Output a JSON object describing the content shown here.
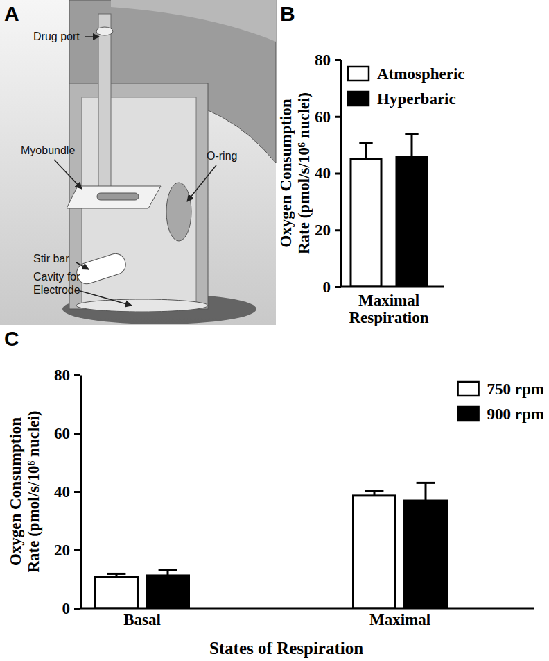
{
  "diagram": {
    "panel_label": "A",
    "labels": [
      {
        "text": [
          "Drug port"
        ]
      },
      {
        "text": [
          "Myobundle"
        ]
      },
      {
        "text": [
          "O-ring"
        ]
      },
      {
        "text": [
          "Stir bar"
        ]
      },
      {
        "text": [
          "Cavity for",
          "Electrode"
        ]
      }
    ]
  },
  "chart_data": [
    {
      "type": "bar",
      "panel_label": "B",
      "y_label": [
        "Oxygen Consumption",
        "Rate (pmol/s/10⁶ nuclei)"
      ],
      "categories": [
        "Maximal Respiration"
      ],
      "series": [
        {
          "name": "Atmospheric",
          "color": "#ffffff",
          "values": [
            45
          ],
          "errors": [
            5.6
          ]
        },
        {
          "name": "Hyperbaric",
          "color": "#000000",
          "values": [
            45.7
          ],
          "errors": [
            8.1
          ]
        }
      ],
      "ylim": [
        0,
        80
      ],
      "yticks": [
        0,
        20,
        40,
        60,
        80
      ],
      "legend": "upper left"
    },
    {
      "type": "bar",
      "panel_label": "C",
      "x_label": "States of Respiration",
      "y_label": [
        "Oxygen Consumption",
        "Rate (pmol/s/10⁶ nuclei)"
      ],
      "categories": [
        "Basal",
        "Maximal"
      ],
      "series": [
        {
          "name": "750 rpm",
          "color": "#ffffff",
          "values": [
            10.6,
            38.6
          ],
          "errors": [
            1.2,
            1.6
          ]
        },
        {
          "name": "900 rpm",
          "color": "#000000",
          "values": [
            11.2,
            36.9
          ],
          "errors": [
            2.0,
            6.1
          ]
        }
      ],
      "ylim": [
        0,
        80
      ],
      "yticks": [
        0,
        20,
        40,
        60,
        80
      ],
      "legend": "upper right"
    }
  ]
}
